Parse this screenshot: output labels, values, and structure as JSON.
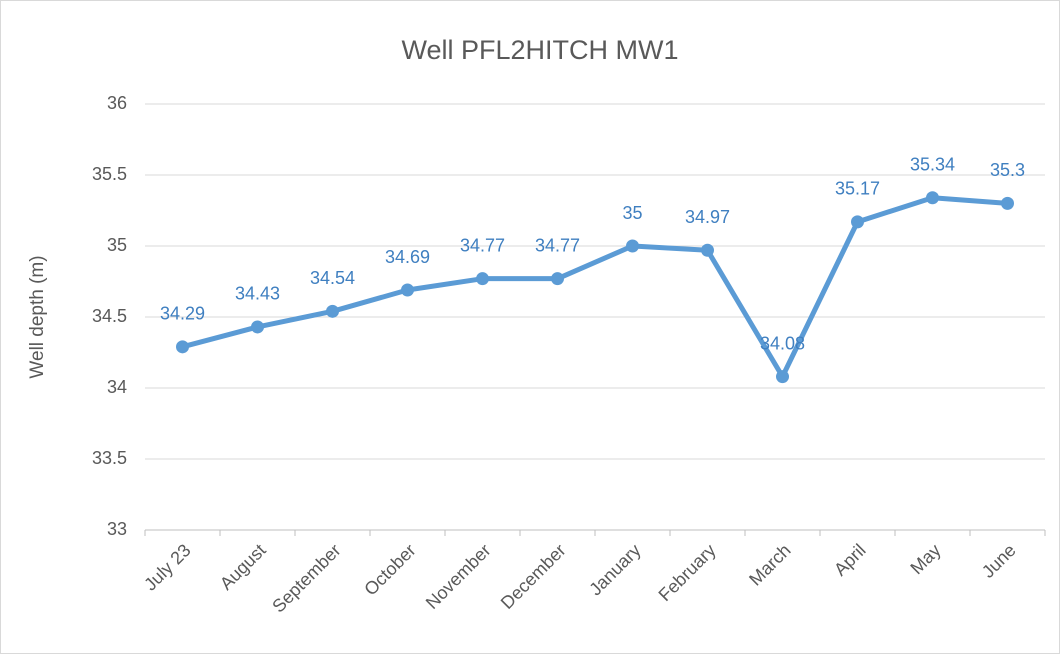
{
  "chart_data": {
    "type": "line",
    "title": "Well PFL2HITCH MW1",
    "y_label": "Well depth (m)",
    "categories": [
      "July 23",
      "August",
      "September",
      "October",
      "November",
      "December",
      "January",
      "February",
      "March",
      "April",
      "May",
      "June"
    ],
    "series": [
      {
        "name": "Well depth",
        "color": "#5b9bd5",
        "values": [
          34.29,
          34.43,
          34.54,
          34.69,
          34.77,
          34.77,
          35,
          34.97,
          34.08,
          35.17,
          35.34,
          35.3
        ]
      }
    ],
    "ylim": [
      33,
      36
    ],
    "yticks": [
      33,
      33.5,
      34,
      34.5,
      35,
      35.5,
      36
    ],
    "grid": true,
    "data_labels": true
  }
}
